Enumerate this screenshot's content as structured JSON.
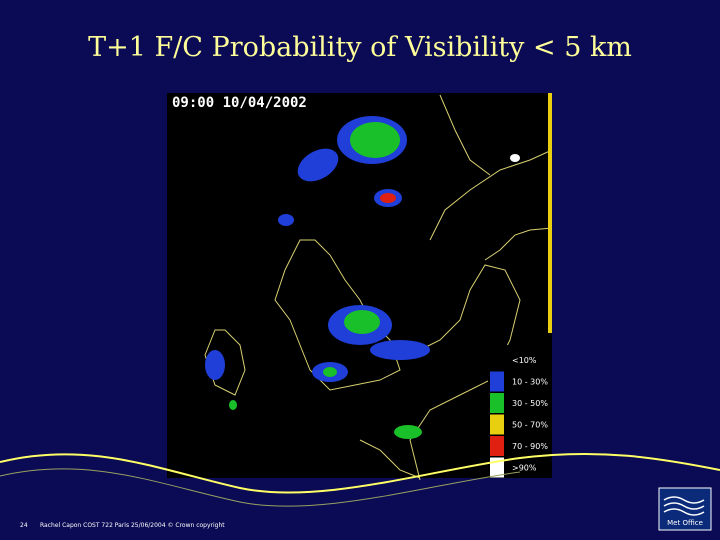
{
  "slide": {
    "title": "T+1 F/C Probability of Visibility < 5 km",
    "map": {
      "timestamp": "09:00 10/04/2002",
      "legend": [
        {
          "label": "<10%",
          "color": "#000000"
        },
        {
          "label": "10 - 30%",
          "color": "#1f3fd8"
        },
        {
          "label": "30 - 50%",
          "color": "#19c02a"
        },
        {
          "label": "50 - 70%",
          "color": "#e8d010"
        },
        {
          "label": "70 - 90%",
          "color": "#e02010"
        },
        {
          "label": ">90%",
          "color": "#ffffff"
        }
      ]
    },
    "footer": {
      "page": "24",
      "text": "Rachel Capon COST 722 Paris 25/06/2004 © Crown copyright"
    },
    "logo": "Met Office"
  }
}
